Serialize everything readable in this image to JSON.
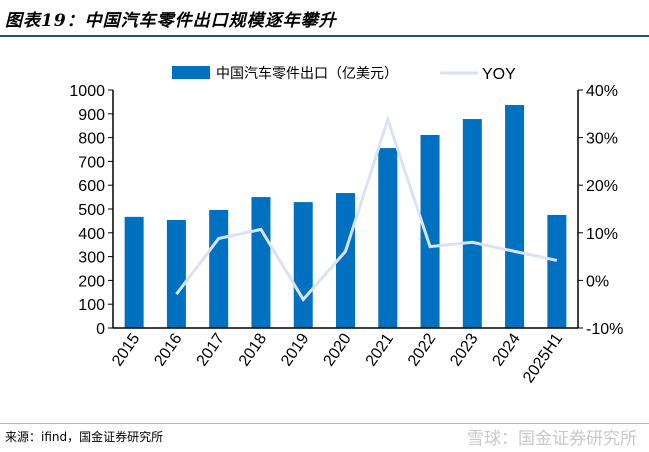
{
  "title": "图表19：中国汽车零件出口规模逐年攀升",
  "source": "来源：ifind，国金证券研究所",
  "watermark": "雪球：国金证券研究所",
  "colors": {
    "bar": "#0070c0",
    "line": "#dae3f3"
  },
  "chart_data": {
    "type": "bar+line",
    "categories": [
      "2015",
      "2016",
      "2017",
      "2018",
      "2019",
      "2020",
      "2021",
      "2022",
      "2023",
      "2024",
      "2025H1"
    ],
    "series": [
      {
        "name": "中国汽车零件出口（亿美元）",
        "type": "bar",
        "axis": "left",
        "values": [
          467,
          454,
          496,
          550,
          529,
          567,
          756,
          811,
          878,
          937,
          475
        ]
      },
      {
        "name": "YOY",
        "type": "line",
        "axis": "right",
        "values": [
          null,
          -2.9,
          8.8,
          10.7,
          -4.0,
          6.1,
          33.8,
          7.1,
          8.0,
          6.1,
          4.2
        ]
      }
    ],
    "left_axis": {
      "range": [
        0,
        1000
      ],
      "ticks": [
        "0",
        "100",
        "200",
        "300",
        "400",
        "500",
        "600",
        "700",
        "800",
        "900",
        "1000"
      ]
    },
    "right_axis": {
      "range": [
        -10,
        40
      ],
      "ticks": [
        "-10%",
        "0%",
        "10%",
        "20%",
        "30%",
        "40%"
      ]
    },
    "legend": "top-center",
    "grid": false
  }
}
